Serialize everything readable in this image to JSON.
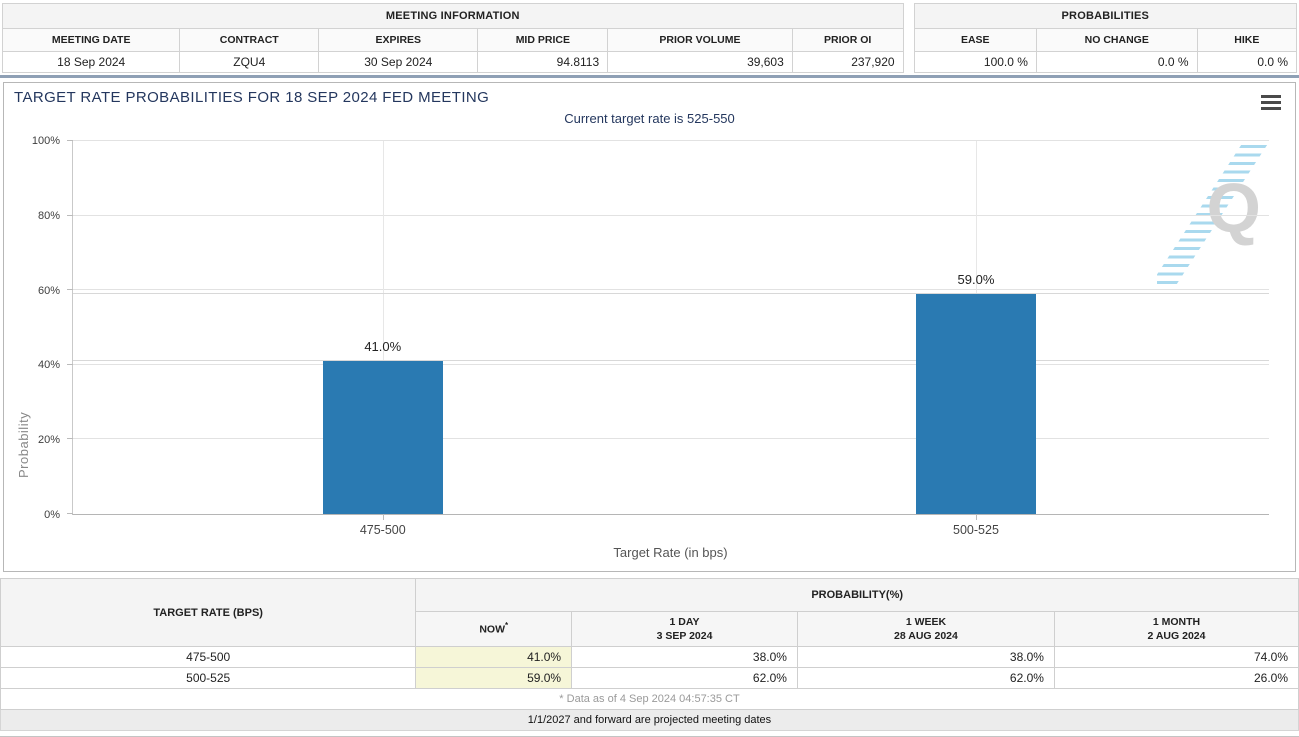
{
  "meeting_info": {
    "title": "MEETING INFORMATION",
    "columns": [
      "MEETING DATE",
      "CONTRACT",
      "EXPIRES",
      "MID PRICE",
      "PRIOR VOLUME",
      "PRIOR OI"
    ],
    "row": [
      "18 Sep 2024",
      "ZQU4",
      "30 Sep 2024",
      "94.8113",
      "39,603",
      "237,920"
    ]
  },
  "probabilities_summary": {
    "title": "PROBABILITIES",
    "columns": [
      "EASE",
      "NO CHANGE",
      "HIKE"
    ],
    "row": [
      "100.0 %",
      "0.0 %",
      "0.0 %"
    ]
  },
  "chart_data": {
    "type": "bar",
    "title": "TARGET RATE PROBABILITIES FOR 18 SEP 2024 FED MEETING",
    "subtitle": "Current target rate is 525-550",
    "categories": [
      "475-500",
      "500-525"
    ],
    "values": [
      41.0,
      59.0
    ],
    "value_labels": [
      "41.0%",
      "59.0%"
    ],
    "xlabel": "Target Rate (in bps)",
    "ylabel": "Probability",
    "ylim": [
      0,
      100
    ],
    "ytick_step": 20,
    "ytick_suffix": "%",
    "grid": true,
    "legend_position": "none",
    "bar_color": "#2a7ab2",
    "bar_centers_pct": [
      25.9,
      75.5
    ],
    "bar_width_pct": 10,
    "watermark_letter": "Q"
  },
  "probability_table": {
    "corner_header": "TARGET RATE (BPS)",
    "group_header": "PROBABILITY(%)",
    "col_headers": [
      {
        "label": "NOW",
        "asterisk": "*",
        "sublabel": ""
      },
      {
        "label": "1 DAY",
        "sublabel": "3 SEP 2024"
      },
      {
        "label": "1 WEEK",
        "sublabel": "28 AUG 2024"
      },
      {
        "label": "1 MONTH",
        "sublabel": "2 AUG 2024"
      }
    ],
    "rows": [
      [
        "475-500",
        "41.0%",
        "38.0%",
        "38.0%",
        "74.0%"
      ],
      [
        "500-525",
        "59.0%",
        "62.0%",
        "62.0%",
        "26.0%"
      ]
    ],
    "footnote": "* Data as of 4 Sep 2024 04:57:35 CT",
    "projected_note": "1/1/2027 and forward are projected meeting dates"
  },
  "colors": {
    "bar": "#2a7ab2",
    "title_navy": "#24375e",
    "now_highlight": "#f6f6d8",
    "divider_blue_gray": "#8fa0b5"
  }
}
